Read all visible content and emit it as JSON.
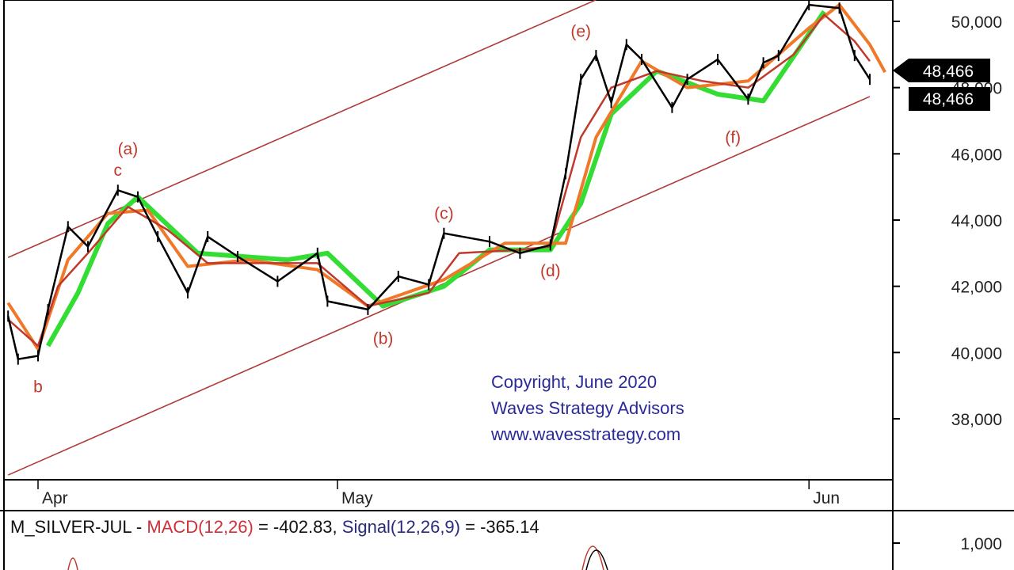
{
  "chart_data": [
    {
      "type": "line",
      "symbol": "M_SILVER-JUL",
      "x_ticks": [
        {
          "date": "2020-04-01",
          "label": "Apr"
        },
        {
          "date": "2020-05-01",
          "label": "May"
        },
        {
          "date": "2020-06-01",
          "label": "Jun"
        }
      ],
      "y_ticks": [
        38000,
        40000,
        42000,
        44000,
        46000,
        48000,
        50000
      ],
      "y_tick_labels": [
        "38,000",
        "40,000",
        "42,000",
        "44,000",
        "46,000",
        "48,000",
        "50,000"
      ],
      "ylim": [
        36000,
        50650
      ],
      "last_price_labels": [
        "48,466",
        "48,466"
      ],
      "colors": {
        "price": "#000000",
        "ma_fast": "#c0392b",
        "ma_slow": "#f07828",
        "cloud": "#33dd33",
        "channel": "#b03a3a",
        "wave_label": "#c0392b",
        "copyright": "#2a2a9a"
      },
      "series": [
        {
          "key": "price",
          "points": [
            [
              "2020-03-29",
              41100
            ],
            [
              "2020-03-30",
              39800
            ],
            [
              "2020-04-01",
              39900
            ],
            [
              "2020-04-02",
              41300
            ],
            [
              "2020-04-04",
              43800
            ],
            [
              "2020-04-06",
              43200
            ],
            [
              "2020-04-09",
              44900
            ],
            [
              "2020-04-11",
              44700
            ],
            [
              "2020-04-13",
              43500
            ],
            [
              "2020-04-16",
              41800
            ],
            [
              "2020-04-18",
              43500
            ],
            [
              "2020-04-21",
              42900
            ],
            [
              "2020-04-25",
              42150
            ],
            [
              "2020-04-29",
              43000
            ],
            [
              "2020-04-30",
              41550
            ],
            [
              "2020-05-03",
              41300
            ],
            [
              "2020-05-05",
              42300
            ],
            [
              "2020-05-07",
              42050
            ],
            [
              "2020-05-08",
              43600
            ],
            [
              "2020-05-11",
              43350
            ],
            [
              "2020-05-13",
              43000
            ],
            [
              "2020-05-15",
              43250
            ],
            [
              "2020-05-16",
              45400
            ],
            [
              "2020-05-17",
              48250
            ],
            [
              "2020-05-18",
              48970
            ],
            [
              "2020-05-19",
              47550
            ],
            [
              "2020-05-20",
              49300
            ],
            [
              "2020-05-21",
              48850
            ],
            [
              "2020-05-23",
              47400
            ],
            [
              "2020-05-24",
              48250
            ],
            [
              "2020-05-26",
              48850
            ],
            [
              "2020-05-28",
              47650
            ],
            [
              "2020-05-29",
              48750
            ],
            [
              "2020-05-30",
              48970
            ],
            [
              "2020-06-01",
              50500
            ],
            [
              "2020-06-03",
              50400
            ],
            [
              "2020-06-04",
              48970
            ],
            [
              "2020-06-05",
              48250
            ]
          ]
        },
        {
          "key": "ma_fast",
          "points": [
            [
              "2020-03-29",
              41000
            ],
            [
              "2020-04-01",
              40200
            ],
            [
              "2020-04-03",
              42000
            ],
            [
              "2020-04-06",
              43000
            ],
            [
              "2020-04-10",
              44400
            ],
            [
              "2020-04-14",
              43700
            ],
            [
              "2020-04-18",
              42700
            ],
            [
              "2020-04-23",
              42700
            ],
            [
              "2020-04-29",
              42700
            ],
            [
              "2020-05-03",
              41400
            ],
            [
              "2020-05-07",
              41800
            ],
            [
              "2020-05-09",
              43000
            ],
            [
              "2020-05-13",
              43100
            ],
            [
              "2020-05-15",
              43200
            ],
            [
              "2020-05-17",
              46500
            ],
            [
              "2020-05-19",
              48000
            ],
            [
              "2020-05-22",
              48500
            ],
            [
              "2020-05-25",
              48200
            ],
            [
              "2020-05-28",
              48000
            ],
            [
              "2020-05-31",
              49000
            ],
            [
              "2020-06-02",
              50200
            ],
            [
              "2020-06-04",
              49400
            ],
            [
              "2020-06-05",
              48800
            ]
          ]
        },
        {
          "key": "ma_slow",
          "points": [
            [
              "2020-03-29",
              41500
            ],
            [
              "2020-04-01",
              40100
            ],
            [
              "2020-04-04",
              42800
            ],
            [
              "2020-04-08",
              44200
            ],
            [
              "2020-04-12",
              44300
            ],
            [
              "2020-04-16",
              42600
            ],
            [
              "2020-04-22",
              42800
            ],
            [
              "2020-04-29",
              42500
            ],
            [
              "2020-05-03",
              41400
            ],
            [
              "2020-05-08",
              42200
            ],
            [
              "2020-05-12",
              43300
            ],
            [
              "2020-05-16",
              43300
            ],
            [
              "2020-05-18",
              46500
            ],
            [
              "2020-05-21",
              48800
            ],
            [
              "2020-05-24",
              48000
            ],
            [
              "2020-05-28",
              48200
            ],
            [
              "2020-06-01",
              49800
            ],
            [
              "2020-06-03",
              50500
            ],
            [
              "2020-06-05",
              49300
            ],
            [
              "2020-06-06",
              48466
            ]
          ]
        },
        {
          "key": "cloud",
          "points": [
            [
              "2020-04-02",
              40200
            ],
            [
              "2020-04-05",
              41800
            ],
            [
              "2020-04-08",
              43900
            ],
            [
              "2020-04-11",
              44700
            ],
            [
              "2020-04-17",
              43000
            ],
            [
              "2020-04-26",
              42800
            ],
            [
              "2020-04-30",
              43000
            ],
            [
              "2020-05-04",
              41400
            ],
            [
              "2020-05-08",
              42000
            ],
            [
              "2020-05-11",
              43100
            ],
            [
              "2020-05-15",
              43100
            ],
            [
              "2020-05-17",
              44500
            ],
            [
              "2020-05-19",
              47200
            ],
            [
              "2020-05-22",
              48500
            ],
            [
              "2020-05-26",
              47800
            ],
            [
              "2020-05-29",
              47600
            ],
            [
              "2020-06-02",
              50300
            ]
          ]
        }
      ],
      "channel": [
        {
          "from": [
            "2020-03-29",
            42870
          ],
          "to": [
            "2020-05-18",
            50650
          ]
        },
        {
          "from": [
            "2020-03-29",
            36300
          ],
          "to": [
            "2020-06-05",
            47730
          ]
        }
      ],
      "wave_labels": [
        {
          "text": "(a)",
          "date": "2020-04-10",
          "price": 46150
        },
        {
          "text": "c",
          "date": "2020-04-09",
          "price": 45500
        },
        {
          "text": "b",
          "date": "2020-04-01",
          "price": 38970
        },
        {
          "text": "(b)",
          "date": "2020-05-04",
          "price": 40430
        },
        {
          "text": "(c)",
          "date": "2020-05-08",
          "price": 44200
        },
        {
          "text": "(d)",
          "date": "2020-05-15",
          "price": 42470
        },
        {
          "text": "(e)",
          "date": "2020-05-17",
          "price": 49700
        },
        {
          "text": "(f)",
          "date": "2020-05-27",
          "price": 46500
        }
      ]
    },
    {
      "type": "line",
      "indicator_prefix": "M_SILVER-JUL - ",
      "macd_label": "MACD(12,26)",
      "macd_value": " = -402.83, ",
      "signal_label": "Signal(12,26,9)",
      "signal_value": " = -365.14",
      "y_ticks": [
        1000
      ],
      "y_tick_labels": [
        "1,000"
      ]
    }
  ],
  "copyright": [
    "Copyright, June 2020",
    "Waves Strategy Advisors",
    "www.wavesstrategy.com"
  ]
}
